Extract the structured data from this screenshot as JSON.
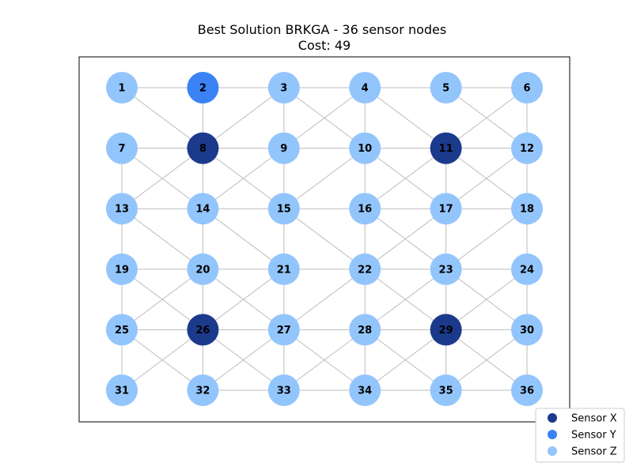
{
  "title": "Best Solution BRKGA - 36 sensor nodes",
  "subtitle": "Cost: 49",
  "colors": {
    "sensor_x": "#1c3a8c",
    "sensor_y": "#3b82f6",
    "sensor_z": "#93c5fd",
    "edge": "#bdbdbd",
    "frame": "#000000"
  },
  "legend": [
    {
      "label": "Sensor X",
      "type": "X"
    },
    {
      "label": "Sensor Y",
      "type": "Y"
    },
    {
      "label": "Sensor Z",
      "type": "Z"
    }
  ],
  "chart_data": {
    "type": "network",
    "grid": {
      "rows": 6,
      "cols": 6
    },
    "nodes": [
      {
        "id": 1,
        "type": "Z"
      },
      {
        "id": 2,
        "type": "Y"
      },
      {
        "id": 3,
        "type": "Z"
      },
      {
        "id": 4,
        "type": "Z"
      },
      {
        "id": 5,
        "type": "Z"
      },
      {
        "id": 6,
        "type": "Z"
      },
      {
        "id": 7,
        "type": "Z"
      },
      {
        "id": 8,
        "type": "X"
      },
      {
        "id": 9,
        "type": "Z"
      },
      {
        "id": 10,
        "type": "Z"
      },
      {
        "id": 11,
        "type": "X"
      },
      {
        "id": 12,
        "type": "Z"
      },
      {
        "id": 13,
        "type": "Z"
      },
      {
        "id": 14,
        "type": "Z"
      },
      {
        "id": 15,
        "type": "Z"
      },
      {
        "id": 16,
        "type": "Z"
      },
      {
        "id": 17,
        "type": "Z"
      },
      {
        "id": 18,
        "type": "Z"
      },
      {
        "id": 19,
        "type": "Z"
      },
      {
        "id": 20,
        "type": "Z"
      },
      {
        "id": 21,
        "type": "Z"
      },
      {
        "id": 22,
        "type": "Z"
      },
      {
        "id": 23,
        "type": "Z"
      },
      {
        "id": 24,
        "type": "Z"
      },
      {
        "id": 25,
        "type": "Z"
      },
      {
        "id": 26,
        "type": "X"
      },
      {
        "id": 27,
        "type": "Z"
      },
      {
        "id": 28,
        "type": "Z"
      },
      {
        "id": 29,
        "type": "X"
      },
      {
        "id": 30,
        "type": "Z"
      },
      {
        "id": 31,
        "type": "Z"
      },
      {
        "id": 32,
        "type": "Z"
      },
      {
        "id": 33,
        "type": "Z"
      },
      {
        "id": 34,
        "type": "Z"
      },
      {
        "id": 35,
        "type": "Z"
      },
      {
        "id": 36,
        "type": "Z"
      }
    ],
    "edges": [
      [
        1,
        2
      ],
      [
        2,
        3
      ],
      [
        3,
        4
      ],
      [
        4,
        5
      ],
      [
        5,
        6
      ],
      [
        7,
        8
      ],
      [
        8,
        9
      ],
      [
        9,
        10
      ],
      [
        10,
        11
      ],
      [
        11,
        12
      ],
      [
        13,
        14
      ],
      [
        14,
        15
      ],
      [
        15,
        16
      ],
      [
        16,
        17
      ],
      [
        17,
        18
      ],
      [
        19,
        20
      ],
      [
        20,
        21
      ],
      [
        21,
        22
      ],
      [
        22,
        23
      ],
      [
        23,
        24
      ],
      [
        25,
        26
      ],
      [
        26,
        27
      ],
      [
        27,
        28
      ],
      [
        28,
        29
      ],
      [
        29,
        30
      ],
      [
        32,
        33
      ],
      [
        33,
        34
      ],
      [
        34,
        35
      ],
      [
        35,
        36
      ],
      [
        2,
        8
      ],
      [
        3,
        9
      ],
      [
        4,
        10
      ],
      [
        6,
        12
      ],
      [
        7,
        13
      ],
      [
        8,
        14
      ],
      [
        9,
        15
      ],
      [
        10,
        16
      ],
      [
        11,
        17
      ],
      [
        12,
        18
      ],
      [
        13,
        19
      ],
      [
        14,
        20
      ],
      [
        15,
        21
      ],
      [
        16,
        22
      ],
      [
        17,
        23
      ],
      [
        18,
        24
      ],
      [
        19,
        25
      ],
      [
        20,
        26
      ],
      [
        21,
        27
      ],
      [
        22,
        28
      ],
      [
        23,
        29
      ],
      [
        24,
        30
      ],
      [
        25,
        31
      ],
      [
        26,
        32
      ],
      [
        27,
        33
      ],
      [
        28,
        34
      ],
      [
        29,
        35
      ],
      [
        30,
        36
      ],
      [
        1,
        8
      ],
      [
        3,
        8
      ],
      [
        3,
        10
      ],
      [
        4,
        9
      ],
      [
        4,
        11
      ],
      [
        5,
        12
      ],
      [
        6,
        11
      ],
      [
        7,
        14
      ],
      [
        8,
        13
      ],
      [
        8,
        15
      ],
      [
        9,
        14
      ],
      [
        10,
        15
      ],
      [
        10,
        17
      ],
      [
        11,
        16
      ],
      [
        11,
        18
      ],
      [
        12,
        17
      ],
      [
        13,
        20
      ],
      [
        14,
        21
      ],
      [
        15,
        22
      ],
      [
        16,
        23
      ],
      [
        17,
        22
      ],
      [
        18,
        23
      ],
      [
        19,
        26
      ],
      [
        20,
        25
      ],
      [
        20,
        27
      ],
      [
        21,
        26
      ],
      [
        22,
        27
      ],
      [
        22,
        29
      ],
      [
        23,
        28
      ],
      [
        23,
        30
      ],
      [
        24,
        29
      ],
      [
        25,
        32
      ],
      [
        26,
        31
      ],
      [
        26,
        33
      ],
      [
        27,
        32
      ],
      [
        27,
        34
      ],
      [
        28,
        33
      ],
      [
        28,
        35
      ],
      [
        29,
        34
      ],
      [
        29,
        36
      ],
      [
        30,
        35
      ]
    ]
  }
}
